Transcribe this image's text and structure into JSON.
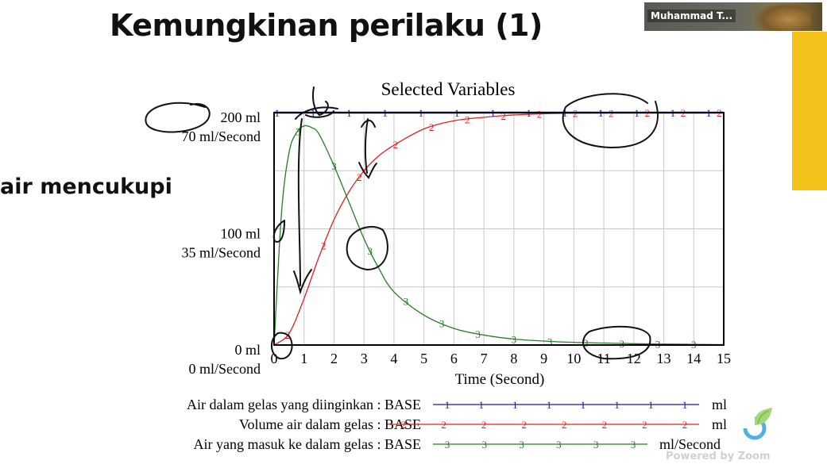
{
  "slide": {
    "title": "Kemungkinan perilaku (1)",
    "fragment_text": "air mencukupi"
  },
  "zoom": {
    "participant_name": "Muhammad T...",
    "watermark": "Powered by Zoom"
  },
  "colors": {
    "series1": "#1a1aa6",
    "series2": "#e02020",
    "series3": "#2a7a2a",
    "grid": "#c8c8c8",
    "accent_bar": "#f5c21b"
  },
  "chart_data": {
    "type": "line",
    "title": "Selected Variables",
    "xlabel": "Time (Second)",
    "x_ticks": [
      0,
      1,
      2,
      3,
      4,
      5,
      6,
      7,
      8,
      9,
      10,
      11,
      12,
      13,
      14,
      15
    ],
    "xlim": [
      0,
      15
    ],
    "y_axes": [
      {
        "unit": "ml",
        "range": [
          0,
          200
        ],
        "tick_labels": [
          "200",
          "100",
          "0"
        ]
      },
      {
        "unit": "ml/Second",
        "range": [
          0,
          70
        ],
        "tick_labels": [
          "70",
          "35",
          "0"
        ]
      }
    ],
    "y_tick_rows": [
      {
        "top": "200  ml",
        "bottom": "70  ml/Second"
      },
      {
        "top": "100  ml",
        "bottom": "35  ml/Second"
      },
      {
        "top": "0  ml",
        "bottom": "0  ml/Second"
      }
    ],
    "series": [
      {
        "name": "Air dalam gelas yang diinginkan : BASE",
        "marker": "1",
        "unit": "ml",
        "axis": 0,
        "x": [
          0,
          15
        ],
        "values": [
          200,
          200
        ]
      },
      {
        "name": "Volume air dalam gelas : BASE",
        "marker": "2",
        "unit": "ml",
        "axis": 0,
        "x": [
          0,
          0.5,
          1,
          1.5,
          2,
          2.5,
          3,
          3.5,
          4,
          5,
          6,
          7,
          8,
          9,
          10,
          11,
          12,
          13,
          14,
          15
        ],
        "values": [
          0,
          10,
          40,
          76,
          108,
          132,
          150,
          163,
          172,
          186,
          193,
          196,
          198,
          199,
          199.5,
          199.7,
          199.8,
          199.9,
          199.9,
          200
        ]
      },
      {
        "name": "Air yang masuk ke dalam gelas : BASE",
        "marker": "3",
        "unit": "ml/Second",
        "axis": 1,
        "x": [
          0,
          0.25,
          0.5,
          0.75,
          1,
          1.25,
          1.5,
          2,
          2.5,
          3,
          3.5,
          4,
          5,
          6,
          7,
          8,
          9,
          10,
          11,
          12,
          13,
          14,
          15
        ],
        "values": [
          0,
          40,
          58,
          64,
          66,
          65.5,
          63.5,
          54,
          43,
          32,
          23,
          16,
          9,
          5,
          3,
          1.8,
          1.2,
          0.8,
          0.6,
          0.4,
          0.3,
          0.2,
          0.1
        ]
      }
    ],
    "legend_position": "bottom"
  }
}
